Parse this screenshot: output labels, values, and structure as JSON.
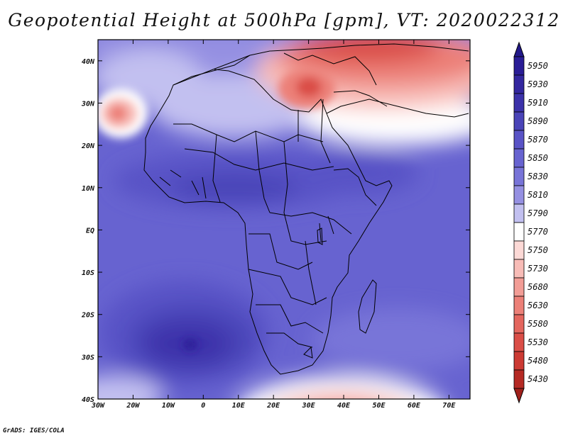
{
  "title": "Geopotential Height at 500hPa [gpm], VT: 2020022312",
  "credit": "GrADS: IGES/COLA",
  "map": {
    "region": "Africa",
    "variable": "Geopotential Height at 500hPa",
    "units": "gpm",
    "lon_range": [
      -30,
      76
    ],
    "lat_range": [
      -40,
      45
    ],
    "lon_ticks": [
      {
        "value": -30,
        "label": "30W"
      },
      {
        "value": -20,
        "label": "20W"
      },
      {
        "value": -10,
        "label": "10W"
      },
      {
        "value": 0,
        "label": "0"
      },
      {
        "value": 10,
        "label": "10E"
      },
      {
        "value": 20,
        "label": "20E"
      },
      {
        "value": 30,
        "label": "30E"
      },
      {
        "value": 40,
        "label": "40E"
      },
      {
        "value": 50,
        "label": "50E"
      },
      {
        "value": 60,
        "label": "60E"
      },
      {
        "value": 70,
        "label": "70E"
      }
    ],
    "lat_ticks": [
      {
        "value": 40,
        "label": "40N"
      },
      {
        "value": 30,
        "label": "30N"
      },
      {
        "value": 20,
        "label": "20N"
      },
      {
        "value": 10,
        "label": "10N"
      },
      {
        "value": 0,
        "label": "EQ"
      },
      {
        "value": -10,
        "label": "10S"
      },
      {
        "value": -20,
        "label": "20S"
      },
      {
        "value": -30,
        "label": "30S"
      },
      {
        "value": -40,
        "label": "40S"
      }
    ]
  },
  "colorbar": {
    "levels": [
      {
        "label": "5950",
        "color": "#2a1d96"
      },
      {
        "label": "5930",
        "color": "#33279f"
      },
      {
        "label": "5910",
        "color": "#3c32aa"
      },
      {
        "label": "5890",
        "color": "#4a44b8"
      },
      {
        "label": "5870",
        "color": "#5953c6"
      },
      {
        "label": "5850",
        "color": "#6763d0"
      },
      {
        "label": "5830",
        "color": "#7874d8"
      },
      {
        "label": "5810",
        "color": "#9590e2"
      },
      {
        "label": "5790",
        "color": "#c2c0f0"
      },
      {
        "label": "5770",
        "color": "#ffffff"
      },
      {
        "label": "5750",
        "color": "#fcd9d6"
      },
      {
        "label": "5730",
        "color": "#f8bcb7"
      },
      {
        "label": "5680",
        "color": "#f29d96"
      },
      {
        "label": "5630",
        "color": "#ec8078"
      },
      {
        "label": "5580",
        "color": "#e4665e"
      },
      {
        "label": "5530",
        "color": "#da4e47"
      },
      {
        "label": "5480",
        "color": "#cc3a33"
      },
      {
        "label": "5430",
        "color": "#b52a24"
      }
    ],
    "top_extend_color": "#22188a",
    "bottom_extend_color": "#a0201b"
  }
}
